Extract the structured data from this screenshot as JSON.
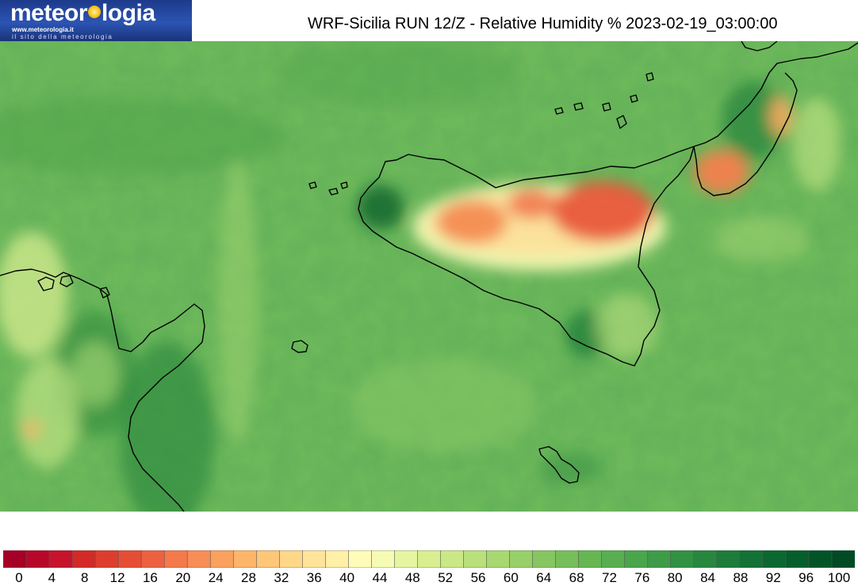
{
  "logo": {
    "name_before": "meteor",
    "name_after": "logia",
    "url": "www.meteorologia.it",
    "tagline": "il sito della meteorologia"
  },
  "title": "WRF-Sicilia RUN 12/Z - Relative Humidity % 2023-02-19_03:00:00",
  "legend": {
    "min": 0,
    "max": 100,
    "step": 2,
    "colors": [
      "#a50026",
      "#b7082a",
      "#c5142c",
      "#d22b27",
      "#dd3d2d",
      "#e54e34",
      "#ed6141",
      "#f47a4c",
      "#f88e55",
      "#fba15e",
      "#fdb56a",
      "#fdc678",
      "#fed789",
      "#fee49b",
      "#fff0a8",
      "#fffbb8",
      "#f6fbb4",
      "#e6f5a1",
      "#d9ef8f",
      "#cae885",
      "#b9e07a",
      "#a8d870",
      "#97cf68",
      "#86c660",
      "#76be5a",
      "#66b654",
      "#58ae50",
      "#4aa54c",
      "#3e9b47",
      "#329143",
      "#27873e",
      "#1d7c39",
      "#137235",
      "#0b6830",
      "#065e2c",
      "#025428",
      "#004a24"
    ],
    "tick_labels": [
      "0",
      "4",
      "8",
      "12",
      "16",
      "20",
      "24",
      "28",
      "32",
      "36",
      "40",
      "44",
      "48",
      "52",
      "56",
      "60",
      "64",
      "68",
      "72",
      "76",
      "80",
      "84",
      "88",
      "92",
      "96",
      "100"
    ]
  },
  "map": {
    "base_color": "#6cb85a",
    "coastline_color": "#000000"
  }
}
